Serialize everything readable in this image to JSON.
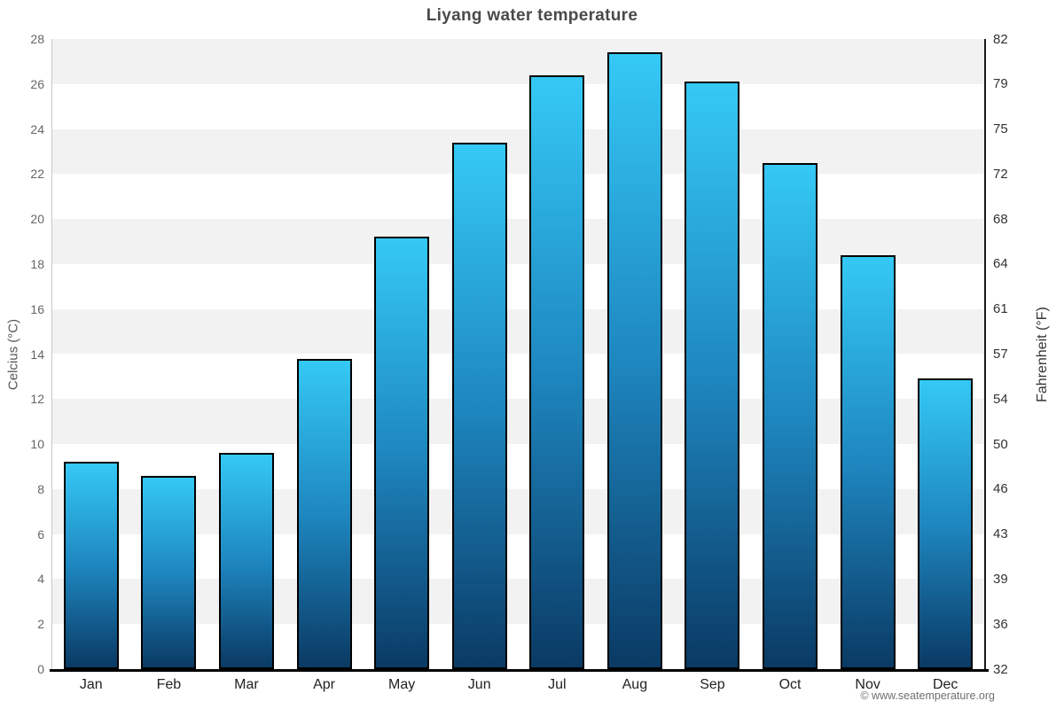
{
  "title": "Liyang water temperature",
  "credit": "© www.seatemperature.org",
  "chart_data": {
    "type": "bar",
    "title": "Liyang water temperature",
    "categories": [
      "Jan",
      "Feb",
      "Mar",
      "Apr",
      "May",
      "Jun",
      "Jul",
      "Aug",
      "Sep",
      "Oct",
      "Nov",
      "Dec"
    ],
    "values": [
      9.2,
      8.6,
      9.6,
      13.8,
      19.2,
      23.4,
      26.4,
      27.4,
      26.1,
      22.5,
      18.4,
      12.9
    ],
    "unit": "°C",
    "ylabel_left": "Celcius (°C)",
    "ylabel_right": "Fahrenheit (°F)",
    "yticks_celsius": [
      0,
      2,
      4,
      6,
      8,
      10,
      12,
      14,
      16,
      18,
      20,
      22,
      24,
      26,
      28
    ],
    "yticks_fahrenheit": [
      32,
      36,
      39,
      43,
      46,
      50,
      54,
      57,
      61,
      64,
      68,
      72,
      75,
      79,
      82
    ],
    "ylim": [
      0,
      28
    ],
    "grid_bands": true,
    "legend": "none",
    "colors": {
      "bar_top": "#35c9f5",
      "bar_mid": "#1e87c0",
      "bar_bottom": "#0a3a64",
      "bar_border": "#000000",
      "band": "#f2f2f2",
      "axis_bottom": "#000000",
      "axis_left": "#c8c8c8",
      "axis_right": "#1a1a1a",
      "title": "#4a4a4a",
      "tick_left": "#666666",
      "tick_right": "#333333",
      "month_label": "#222222",
      "credit": "#707070"
    }
  }
}
